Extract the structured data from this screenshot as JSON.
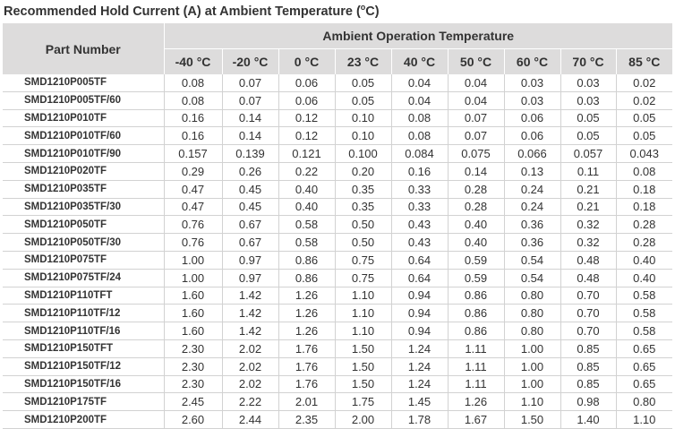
{
  "title": {
    "text": "Recommended Hold Current (A) at Ambient Temperature (",
    "sup": "o",
    "unit_tail": "C)"
  },
  "table": {
    "part_header": "Part Number",
    "group_header": "Ambient Operation Temperature",
    "temps": [
      "-40 °C",
      "-20 °C",
      "0 °C",
      "23 °C",
      "40 °C",
      "50 °C",
      "60 °C",
      "70 °C",
      "85 °C"
    ],
    "rows": [
      [
        "SMD1210P005TF",
        "0.08",
        "0.07",
        "0.06",
        "0.05",
        "0.04",
        "0.04",
        "0.03",
        "0.03",
        "0.02"
      ],
      [
        "SMD1210P005TF/60",
        "0.08",
        "0.07",
        "0.06",
        "0.05",
        "0.04",
        "0.04",
        "0.03",
        "0.03",
        "0.02"
      ],
      [
        "SMD1210P010TF",
        "0.16",
        "0.14",
        "0.12",
        "0.10",
        "0.08",
        "0.07",
        "0.06",
        "0.05",
        "0.05"
      ],
      [
        "SMD1210P010TF/60",
        "0.16",
        "0.14",
        "0.12",
        "0.10",
        "0.08",
        "0.07",
        "0.06",
        "0.05",
        "0.05"
      ],
      [
        "SMD1210P010TF/90",
        "0.157",
        "0.139",
        "0.121",
        "0.100",
        "0.084",
        "0.075",
        "0.066",
        "0.057",
        "0.043"
      ],
      [
        "SMD1210P020TF",
        "0.29",
        "0.26",
        "0.22",
        "0.20",
        "0.16",
        "0.14",
        "0.13",
        "0.11",
        "0.08"
      ],
      [
        "SMD1210P035TF",
        "0.47",
        "0.45",
        "0.40",
        "0.35",
        "0.33",
        "0.28",
        "0.24",
        "0.21",
        "0.18"
      ],
      [
        "SMD1210P035TF/30",
        "0.47",
        "0.45",
        "0.40",
        "0.35",
        "0.33",
        "0.28",
        "0.24",
        "0.21",
        "0.18"
      ],
      [
        "SMD1210P050TF",
        "0.76",
        "0.67",
        "0.58",
        "0.50",
        "0.43",
        "0.40",
        "0.36",
        "0.32",
        "0.28"
      ],
      [
        "SMD1210P050TF/30",
        "0.76",
        "0.67",
        "0.58",
        "0.50",
        "0.43",
        "0.40",
        "0.36",
        "0.32",
        "0.28"
      ],
      [
        "SMD1210P075TF",
        "1.00",
        "0.97",
        "0.86",
        "0.75",
        "0.64",
        "0.59",
        "0.54",
        "0.48",
        "0.40"
      ],
      [
        "SMD1210P075TF/24",
        "1.00",
        "0.97",
        "0.86",
        "0.75",
        "0.64",
        "0.59",
        "0.54",
        "0.48",
        "0.40"
      ],
      [
        "SMD1210P110TFT",
        "1.60",
        "1.42",
        "1.26",
        "1.10",
        "0.94",
        "0.86",
        "0.80",
        "0.70",
        "0.58"
      ],
      [
        "SMD1210P110TF/12",
        "1.60",
        "1.42",
        "1.26",
        "1.10",
        "0.94",
        "0.86",
        "0.80",
        "0.70",
        "0.58"
      ],
      [
        "SMD1210P110TF/16",
        "1.60",
        "1.42",
        "1.26",
        "1.10",
        "0.94",
        "0.86",
        "0.80",
        "0.70",
        "0.58"
      ],
      [
        "SMD1210P150TFT",
        "2.30",
        "2.02",
        "1.76",
        "1.50",
        "1.24",
        "1.11",
        "1.00",
        "0.85",
        "0.65"
      ],
      [
        "SMD1210P150TF/12",
        "2.30",
        "2.02",
        "1.76",
        "1.50",
        "1.24",
        "1.11",
        "1.00",
        "0.85",
        "0.65"
      ],
      [
        "SMD1210P150TF/16",
        "2.30",
        "2.02",
        "1.76",
        "1.50",
        "1.24",
        "1.11",
        "1.00",
        "0.85",
        "0.65"
      ],
      [
        "SMD1210P175TF",
        "2.45",
        "2.22",
        "2.01",
        "1.75",
        "1.45",
        "1.26",
        "1.10",
        "0.98",
        "0.80"
      ],
      [
        "SMD1210P200TF",
        "2.60",
        "2.44",
        "2.35",
        "2.00",
        "1.78",
        "1.67",
        "1.50",
        "1.40",
        "1.10"
      ]
    ]
  }
}
